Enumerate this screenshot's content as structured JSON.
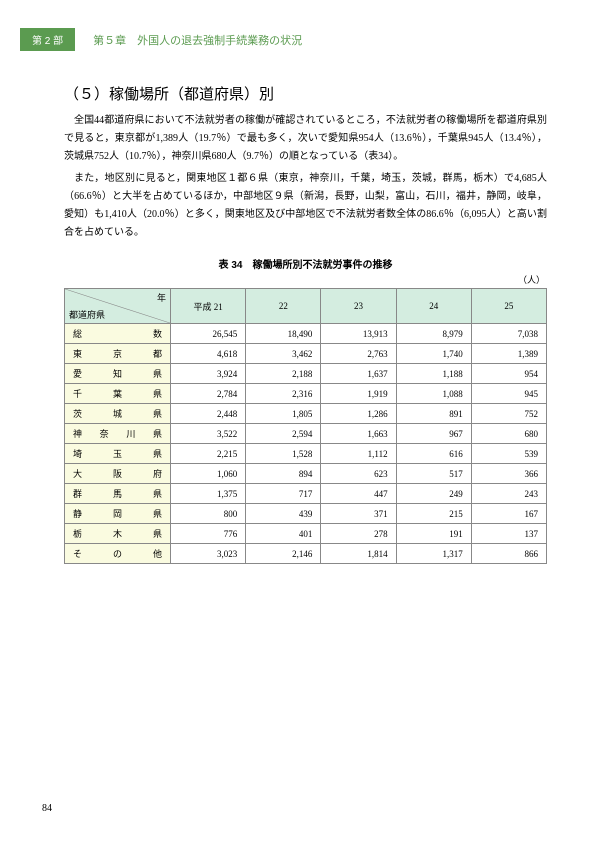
{
  "header": {
    "part_badge": "第 2 部",
    "chapter_title": "第５章　外国人の退去強制手続業務の状況"
  },
  "section": {
    "heading": "（５）稼働場所（都道府県）別",
    "para1": "全国44都道府県において不法就労者の稼働が確認されているところ，不法就労者の稼働場所を都道府県別で見ると，東京都が1,389人（19.7％）で最も多く，次いで愛知県954人（13.6％），千葉県945人（13.4％），茨城県752人（10.7％），神奈川県680人（9.7％）の順となっている（表34）。",
    "para2": "また，地区別に見ると，関東地区１都６県（東京，神奈川，千葉，埼玉，茨城，群馬，栃木）で4,685人（66.6％）と大半を占めているほか，中部地区９県（新潟，長野，山梨，富山，石川，福井，静岡，岐阜，愛知）も1,410人（20.0％）と多く，関東地区及び中部地区で不法就労者数全体の86.6％（6,095人）と高い割合を占めている。"
  },
  "table": {
    "caption": "表 34　稼働場所別不法就労事件の推移",
    "unit": "（人）",
    "diag_year_label": "年",
    "diag_pref_label": "都道府県",
    "columns": [
      "平成 21",
      "22",
      "23",
      "24",
      "25"
    ],
    "rows": [
      {
        "label": "総数",
        "cells": [
          "26,545",
          "18,490",
          "13,913",
          "8,979",
          "7,038"
        ]
      },
      {
        "label": "東京都",
        "cells": [
          "4,618",
          "3,462",
          "2,763",
          "1,740",
          "1,389"
        ]
      },
      {
        "label": "愛知県",
        "cells": [
          "3,924",
          "2,188",
          "1,637",
          "1,188",
          "954"
        ]
      },
      {
        "label": "千葉県",
        "cells": [
          "2,784",
          "2,316",
          "1,919",
          "1,088",
          "945"
        ]
      },
      {
        "label": "茨城県",
        "cells": [
          "2,448",
          "1,805",
          "1,286",
          "891",
          "752"
        ]
      },
      {
        "label": "神奈川県",
        "cells": [
          "3,522",
          "2,594",
          "1,663",
          "967",
          "680"
        ]
      },
      {
        "label": "埼玉県",
        "cells": [
          "2,215",
          "1,528",
          "1,112",
          "616",
          "539"
        ]
      },
      {
        "label": "大阪府",
        "cells": [
          "1,060",
          "894",
          "623",
          "517",
          "366"
        ]
      },
      {
        "label": "群馬県",
        "cells": [
          "1,375",
          "717",
          "447",
          "249",
          "243"
        ]
      },
      {
        "label": "静岡県",
        "cells": [
          "800",
          "439",
          "371",
          "215",
          "167"
        ]
      },
      {
        "label": "栃木県",
        "cells": [
          "776",
          "401",
          "278",
          "191",
          "137"
        ]
      },
      {
        "label": "その他",
        "cells": [
          "3,023",
          "2,146",
          "1,814",
          "1,317",
          "866"
        ]
      }
    ]
  },
  "page_number": "84",
  "colors": {
    "accent": "#5b9b50",
    "thead_bg": "#d4ede0",
    "row_label_bg": "#fafbe0",
    "border": "#888888"
  }
}
